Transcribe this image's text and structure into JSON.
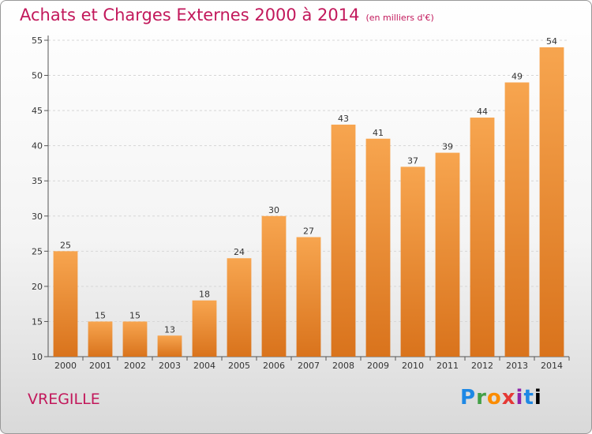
{
  "header": {
    "title": "Achats et Charges Externes 2000 à 2014",
    "subtitle": "(en milliers d'€)"
  },
  "footer": {
    "commune": "VREGILLE",
    "brand": "Proxiti"
  },
  "colors": {
    "bar_top": "#f7a54f",
    "bar_bottom": "#d9731c",
    "title": "#c2185b"
  },
  "chart_data": {
    "type": "bar",
    "title": "Achats et Charges Externes 2000 à 2014",
    "subtitle": "(en milliers d'€)",
    "categories": [
      "2000",
      "2001",
      "2002",
      "2003",
      "2004",
      "2005",
      "2006",
      "2007",
      "2008",
      "2009",
      "2010",
      "2011",
      "2012",
      "2013",
      "2014"
    ],
    "values": [
      25,
      15,
      15,
      13,
      18,
      24,
      30,
      27,
      43,
      41,
      37,
      39,
      44,
      49,
      54
    ],
    "ylim": [
      10,
      55
    ],
    "yticks": [
      10,
      15,
      20,
      25,
      30,
      35,
      40,
      45,
      50,
      55
    ],
    "grid": true,
    "data_labels": true
  }
}
